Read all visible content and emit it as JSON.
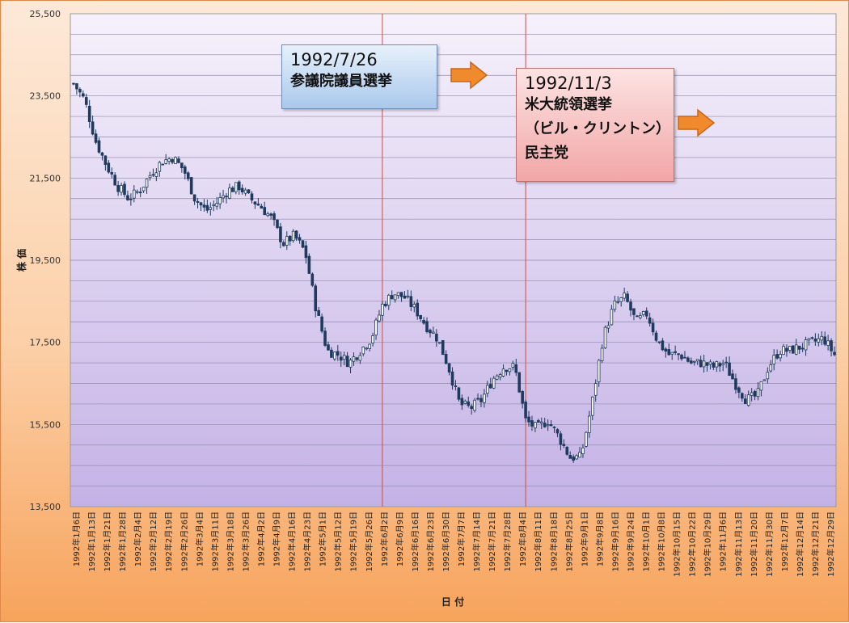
{
  "chart_data": {
    "type": "candlestick",
    "ylabel": "株 価",
    "xlabel": "日 付",
    "ylim": [
      13500,
      25500
    ],
    "yticks": [
      "13,500",
      "15,500",
      "17,500",
      "19,500",
      "21,500",
      "23,500",
      "25,500"
    ],
    "x_tick_labels": [
      "1992年1月6日",
      "1992年1月13日",
      "1992年1月21日",
      "1992年1月28日",
      "1992年2月4日",
      "1992年2月12日",
      "1992年2月19日",
      "1992年2月26日",
      "1992年3月4日",
      "1992年3月11日",
      "1992年3月18日",
      "1992年3月26日",
      "1992年4月2日",
      "1992年4月9日",
      "1992年4月16日",
      "1992年4月23日",
      "1992年5月1日",
      "1992年5月12日",
      "1992年5月19日",
      "1992年5月26日",
      "1992年6月2日",
      "1992年6月9日",
      "1992年6月16日",
      "1992年6月23日",
      "1992年6月30日",
      "1992年7月7日",
      "1992年7月14日",
      "1992年7月21日",
      "1992年7月28日",
      "1992年8月4日",
      "1992年8月11日",
      "1992年8月18日",
      "1992年8月25日",
      "1992年9月1日",
      "1992年9月8日",
      "1992年9月16日",
      "1992年9月24日",
      "1992年10月1日",
      "1992年10月8日",
      "1992年10月15日",
      "1992年10月22日",
      "1992年10月29日",
      "1992年11月6日",
      "1992年11月13日",
      "1992年11月20日",
      "1992年11月30日",
      "1992年12月7日",
      "1992年12月14日",
      "1992年12月21日",
      "1992年12月29日"
    ],
    "close_path": [
      [
        0,
        23800
      ],
      [
        1,
        23400
      ],
      [
        2,
        22400
      ],
      [
        3,
        21800
      ],
      [
        4,
        21300
      ],
      [
        5,
        21000
      ],
      [
        6,
        21200
      ],
      [
        7,
        21600
      ],
      [
        8,
        21900
      ],
      [
        9,
        22000
      ],
      [
        10,
        21700
      ],
      [
        11,
        21000
      ],
      [
        12,
        20700
      ],
      [
        13,
        20900
      ],
      [
        14,
        21200
      ],
      [
        15,
        21300
      ],
      [
        16,
        21000
      ],
      [
        17,
        20800
      ],
      [
        18,
        20500
      ],
      [
        19,
        19900
      ],
      [
        20,
        20100
      ],
      [
        21,
        19700
      ],
      [
        22,
        18300
      ],
      [
        23,
        17300
      ],
      [
        24,
        17200
      ],
      [
        25,
        17000
      ],
      [
        26,
        17300
      ],
      [
        27,
        17600
      ],
      [
        28,
        18400
      ],
      [
        29,
        18700
      ],
      [
        30,
        18600
      ],
      [
        31,
        18300
      ],
      [
        32,
        17900
      ],
      [
        33,
        17600
      ],
      [
        34,
        16900
      ],
      [
        35,
        16000
      ],
      [
        36,
        15900
      ],
      [
        37,
        16100
      ],
      [
        38,
        16600
      ],
      [
        39,
        16900
      ],
      [
        40,
        16900
      ],
      [
        41,
        15600
      ],
      [
        42,
        15400
      ],
      [
        43,
        15600
      ],
      [
        44,
        15200
      ],
      [
        45,
        14700
      ],
      [
        46,
        14700
      ],
      [
        47,
        16000
      ],
      [
        48,
        17600
      ],
      [
        49,
        18400
      ],
      [
        50,
        18600
      ],
      [
        51,
        18000
      ],
      [
        52,
        18200
      ],
      [
        53,
        17500
      ],
      [
        54,
        17200
      ],
      [
        55,
        17200
      ],
      [
        56,
        17000
      ],
      [
        57,
        17000
      ],
      [
        58,
        16900
      ],
      [
        59,
        17000
      ],
      [
        60,
        16500
      ],
      [
        61,
        16100
      ],
      [
        62,
        16200
      ],
      [
        63,
        16900
      ],
      [
        64,
        17300
      ],
      [
        65,
        17300
      ],
      [
        66,
        17400
      ],
      [
        67,
        17500
      ],
      [
        68,
        17600
      ],
      [
        69,
        17200
      ]
    ],
    "annotations": [
      {
        "date": "1992/7/26",
        "lines": [
          "参議院議員選挙"
        ],
        "x_index": 28
      },
      {
        "date": "1992/11/3",
        "lines": [
          "米大統領選挙",
          "（ビル・クリントン）",
          "民主党"
        ],
        "x_index": 41
      }
    ],
    "grid": true,
    "legend": "none",
    "colors": {
      "candle": "#1f3a5f",
      "marker_line": "#c0504d",
      "arrow": "#f08a2c"
    }
  }
}
